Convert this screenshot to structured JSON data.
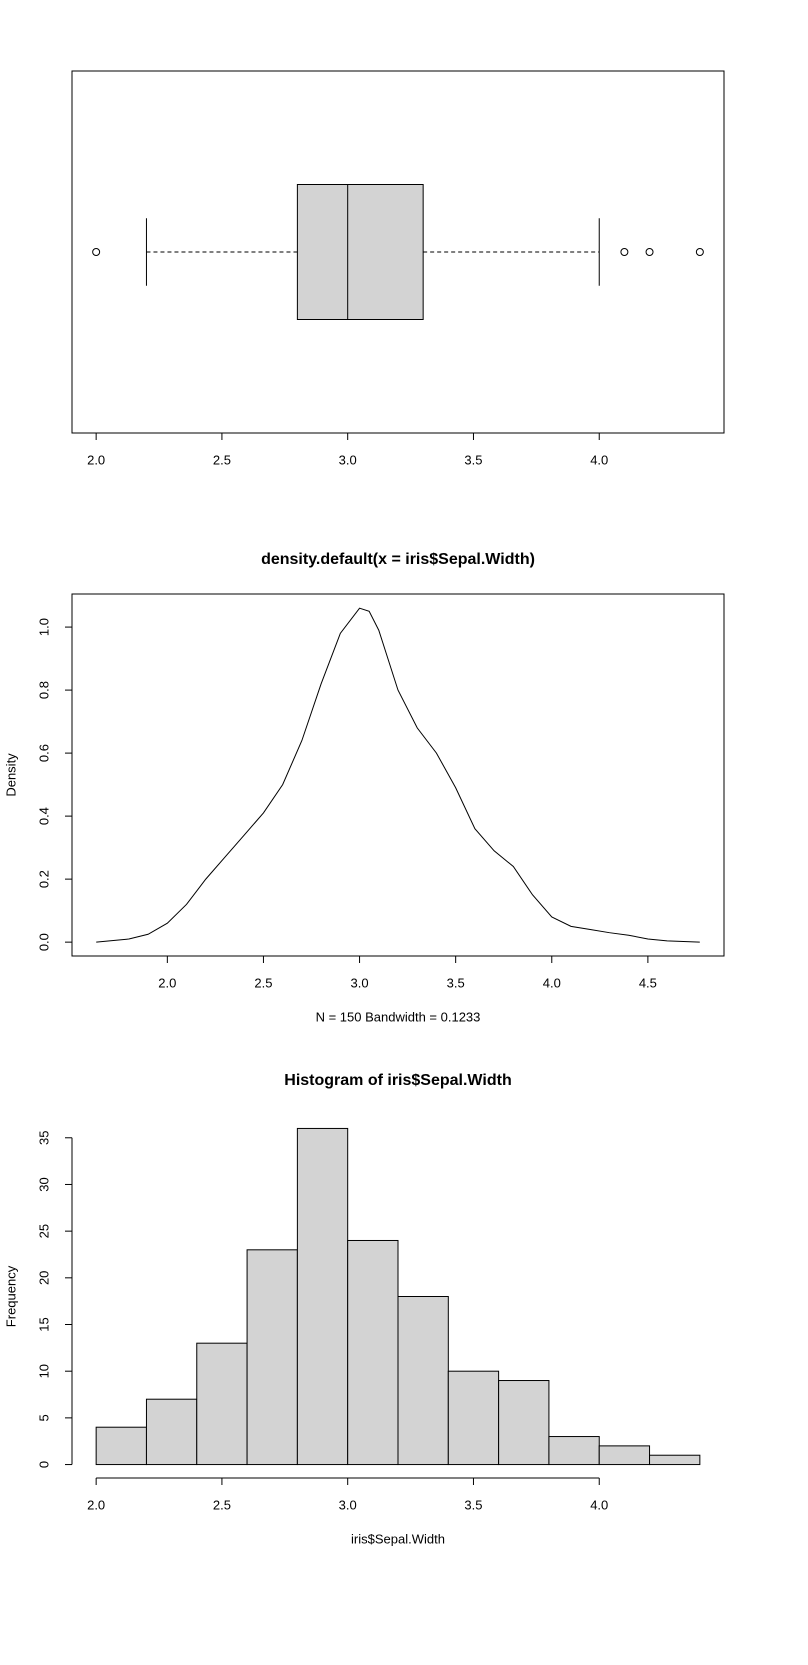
{
  "chart_data": [
    {
      "type": "box",
      "color": "#d3d3d3",
      "whislo": 2.2,
      "q1": 2.8,
      "median": 3.0,
      "q3": 3.3,
      "whishi": 4.0,
      "outliers": [
        2.0,
        4.1,
        4.2,
        4.4
      ],
      "xlim": [
        1.904,
        4.496
      ],
      "xticks": [
        {
          "value": 2,
          "label": "2.0"
        },
        {
          "value": 2.5,
          "label": "2.5"
        },
        {
          "value": 3,
          "label": "3.0"
        },
        {
          "value": 3.5,
          "label": "3.5"
        },
        {
          "value": 4,
          "label": "4.0"
        }
      ]
    },
    {
      "type": "line",
      "title": "density.default(x = iris$Sepal.Width)",
      "x_label": "N = 150   Bandwidth = 0.1233",
      "y_label": "Density",
      "color": "#000000",
      "x": [
        1.63,
        1.8,
        1.9,
        2.0,
        2.1,
        2.2,
        2.3,
        2.4,
        2.5,
        2.6,
        2.7,
        2.8,
        2.9,
        3.0,
        3.05,
        3.1,
        3.2,
        3.3,
        3.4,
        3.5,
        3.6,
        3.7,
        3.8,
        3.9,
        4.0,
        4.1,
        4.2,
        4.3,
        4.4,
        4.5,
        4.6,
        4.77
      ],
      "values": [
        0,
        0.01,
        0.025,
        0.06,
        0.12,
        0.2,
        0.27,
        0.34,
        0.41,
        0.5,
        0.64,
        0.82,
        0.98,
        1.06,
        1.05,
        0.99,
        0.8,
        0.68,
        0.6,
        0.49,
        0.36,
        0.29,
        0.24,
        0.15,
        0.08,
        0.05,
        0.04,
        0.03,
        0.022,
        0.01,
        0.004,
        0
      ],
      "xlim": [
        1.504,
        4.896
      ],
      "ylim": [
        -0.044,
        1.105
      ],
      "xticks": [
        {
          "value": 2,
          "label": "2.0"
        },
        {
          "value": 2.5,
          "label": "2.5"
        },
        {
          "value": 3,
          "label": "3.0"
        },
        {
          "value": 3.5,
          "label": "3.5"
        },
        {
          "value": 4,
          "label": "4.0"
        },
        {
          "value": 4.5,
          "label": "4.5"
        }
      ],
      "yticks": [
        {
          "value": 0,
          "label": "0.0"
        },
        {
          "value": 0.2,
          "label": "0.2"
        },
        {
          "value": 0.4,
          "label": "0.4"
        },
        {
          "value": 0.6,
          "label": "0.6"
        },
        {
          "value": 0.8,
          "label": "0.8"
        },
        {
          "value": 1,
          "label": "1.0"
        }
      ]
    },
    {
      "type": "histogram",
      "title": "Histogram of iris$Sepal.Width",
      "x_label": "iris$Sepal.Width",
      "y_label": "Frequency",
      "color": "#d3d3d3",
      "bins": [
        2.0,
        2.2,
        2.4,
        2.6,
        2.8,
        3.0,
        3.2,
        3.4,
        3.6,
        3.8,
        4.0,
        4.2,
        4.4
      ],
      "values": [
        4,
        7,
        13,
        23,
        36,
        24,
        18,
        10,
        9,
        3,
        2,
        1
      ],
      "xlim": [
        1.904,
        4.496
      ],
      "ylim": [
        -1.44,
        37.44
      ],
      "xticks": [
        {
          "value": 2,
          "label": "2.0"
        },
        {
          "value": 2.5,
          "label": "2.5"
        },
        {
          "value": 3,
          "label": "3.0"
        },
        {
          "value": 3.5,
          "label": "3.5"
        },
        {
          "value": 4,
          "label": "4.0"
        }
      ],
      "yticks": [
        0,
        5,
        10,
        15,
        20,
        25,
        30,
        35
      ]
    }
  ]
}
